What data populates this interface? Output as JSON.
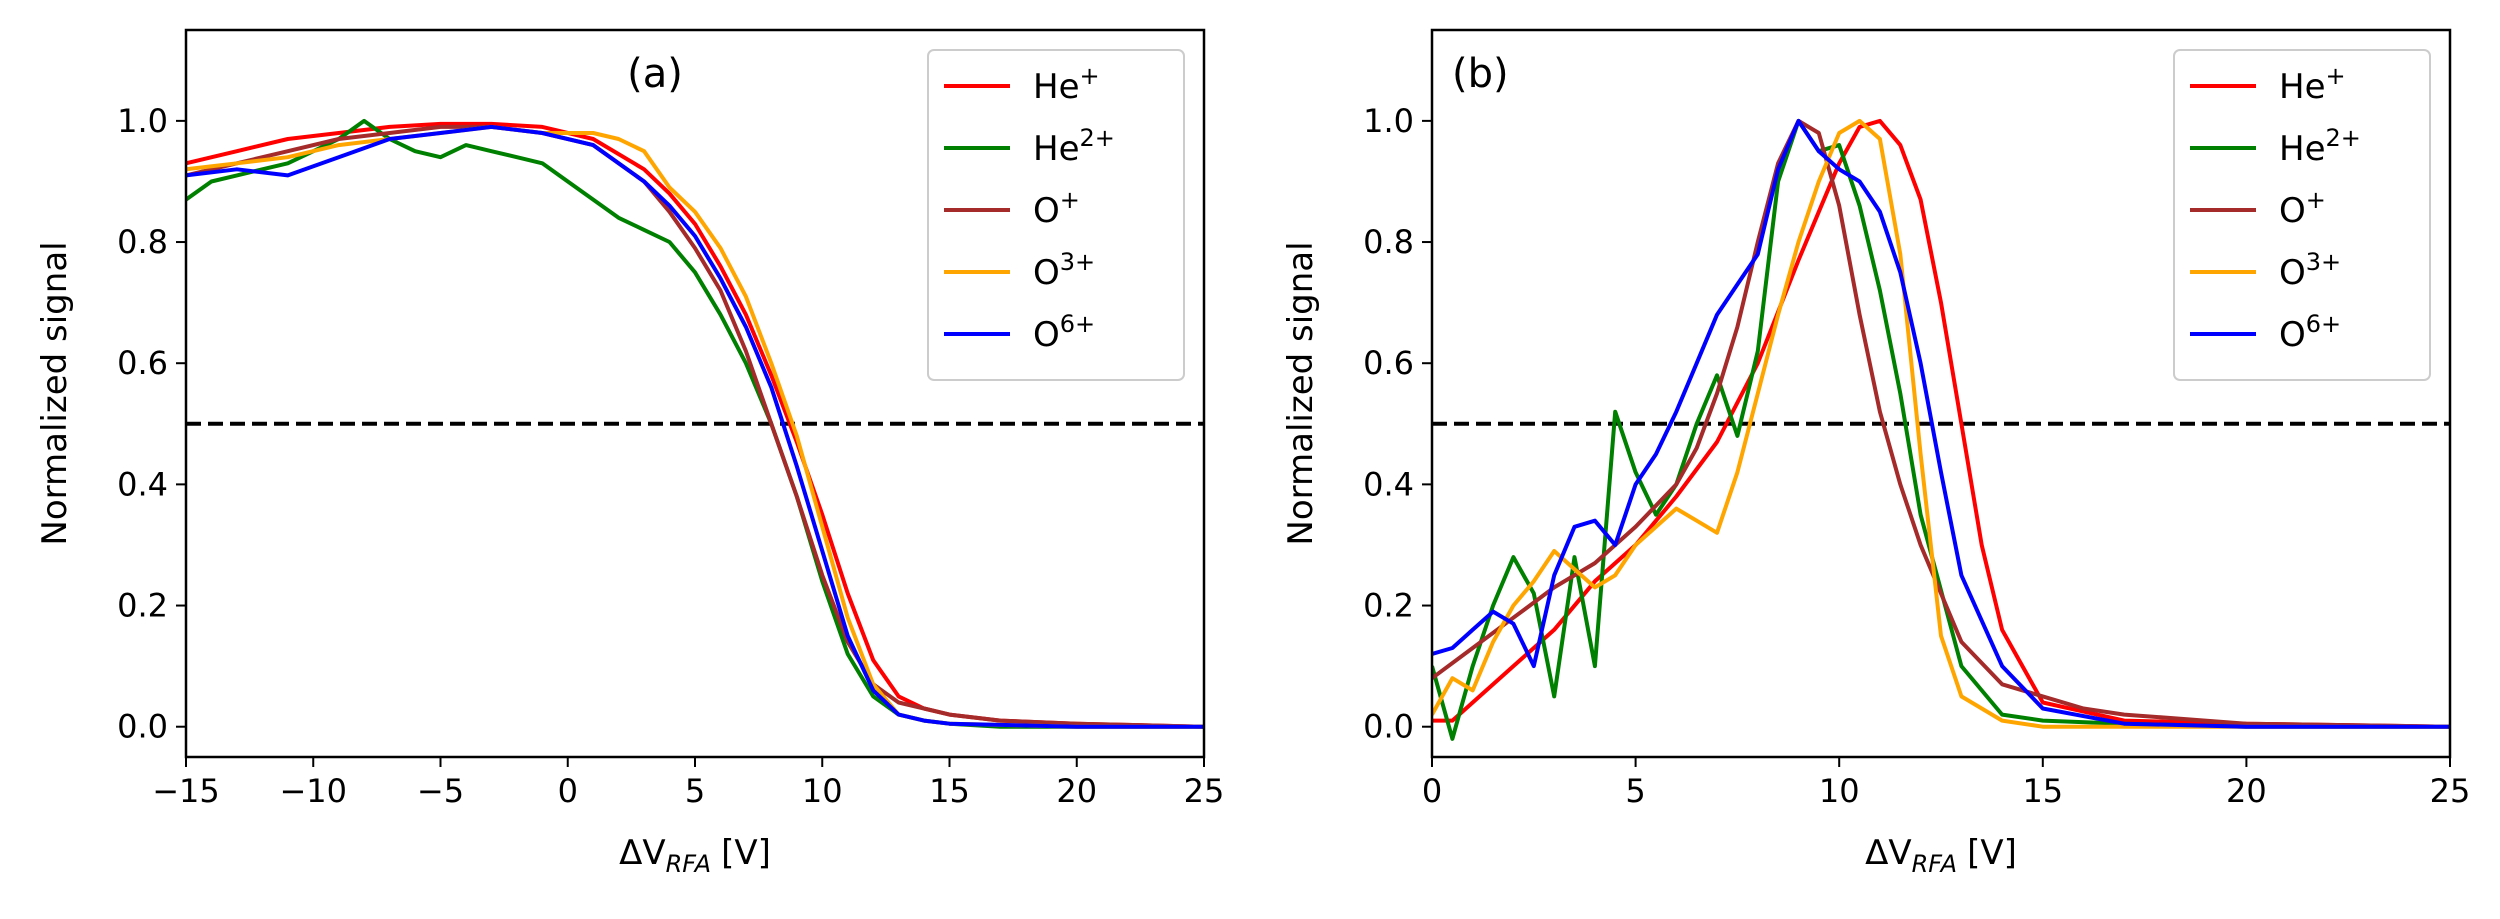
{
  "chart_data": [
    {
      "type": "line",
      "panel_label": "(a)",
      "xlabel_prefix": "ΔV",
      "xlabel_sub": "RFA",
      "xlabel_unit": "[V]",
      "ylabel": "Normalized signal",
      "xlim": [
        -15,
        25
      ],
      "ylim": [
        -0.05,
        1.15
      ],
      "xticks": [
        "−15",
        "−10",
        "−5",
        "0",
        "5",
        "10",
        "15",
        "20",
        "25"
      ],
      "xtick_values": [
        -15,
        -10,
        -5,
        0,
        5,
        10,
        15,
        20,
        25
      ],
      "yticks": [
        "0.0",
        "0.2",
        "0.4",
        "0.6",
        "0.8",
        "1.0"
      ],
      "ytick_values": [
        0.0,
        0.2,
        0.4,
        0.6,
        0.8,
        1.0
      ],
      "hline": 0.5,
      "legend_position": "upper right",
      "series": [
        {
          "name": "He",
          "sup": "+",
          "color": "#ff0000",
          "x": [
            -15,
            -13,
            -11,
            -9,
            -7,
            -5,
            -3,
            -1,
            1,
            3,
            4,
            5,
            6,
            7,
            8,
            9,
            10,
            11,
            12,
            13,
            14,
            15,
            17,
            20,
            25
          ],
          "y": [
            0.93,
            0.95,
            0.97,
            0.98,
            0.99,
            0.995,
            0.995,
            0.99,
            0.97,
            0.92,
            0.88,
            0.83,
            0.76,
            0.68,
            0.58,
            0.47,
            0.35,
            0.22,
            0.11,
            0.05,
            0.03,
            0.02,
            0.01,
            0.005,
            0.0
          ]
        },
        {
          "name": "He",
          "sup": "2+",
          "color": "#008000",
          "x": [
            -15,
            -14,
            -13,
            -12,
            -11,
            -10,
            -9,
            -8,
            -7,
            -6,
            -5,
            -4,
            -3,
            -2,
            -1,
            0,
            1,
            2,
            3,
            4,
            5,
            6,
            7,
            8,
            9,
            10,
            11,
            12,
            13,
            14,
            15,
            17,
            20,
            25
          ],
          "y": [
            0.87,
            0.9,
            0.91,
            0.92,
            0.93,
            0.95,
            0.97,
            1.0,
            0.97,
            0.95,
            0.94,
            0.96,
            0.95,
            0.94,
            0.93,
            0.9,
            0.87,
            0.84,
            0.82,
            0.8,
            0.75,
            0.68,
            0.6,
            0.5,
            0.38,
            0.24,
            0.12,
            0.05,
            0.02,
            0.01,
            0.005,
            0.0,
            0.0,
            0.0
          ]
        },
        {
          "name": "O",
          "sup": "+",
          "color": "#a52a2a",
          "x": [
            -15,
            -13,
            -11,
            -9,
            -7,
            -5,
            -3,
            -1,
            1,
            3,
            4,
            5,
            6,
            7,
            8,
            9,
            10,
            11,
            12,
            13,
            14,
            15,
            17,
            20,
            25
          ],
          "y": [
            0.91,
            0.93,
            0.95,
            0.97,
            0.98,
            0.99,
            0.99,
            0.98,
            0.96,
            0.9,
            0.85,
            0.79,
            0.72,
            0.62,
            0.5,
            0.38,
            0.25,
            0.14,
            0.07,
            0.04,
            0.03,
            0.02,
            0.01,
            0.005,
            0.0
          ]
        },
        {
          "name": "O",
          "sup": "3+",
          "color": "#ffa500",
          "x": [
            -15,
            -13,
            -11,
            -9,
            -7,
            -5,
            -3,
            -1,
            1,
            2,
            3,
            4,
            5,
            6,
            7,
            8,
            9,
            10,
            11,
            12,
            13,
            14,
            15,
            20,
            25
          ],
          "y": [
            0.92,
            0.93,
            0.94,
            0.96,
            0.97,
            0.98,
            0.99,
            0.98,
            0.98,
            0.97,
            0.95,
            0.89,
            0.85,
            0.79,
            0.71,
            0.6,
            0.48,
            0.33,
            0.18,
            0.07,
            0.02,
            0.01,
            0.005,
            0.0,
            0.0
          ]
        },
        {
          "name": "O",
          "sup": "6+",
          "color": "#0000ff",
          "x": [
            -15,
            -13,
            -11,
            -9,
            -7,
            -5,
            -3,
            -1,
            1,
            2,
            3,
            4,
            5,
            6,
            7,
            8,
            9,
            10,
            11,
            12,
            13,
            14,
            15,
            20,
            25
          ],
          "y": [
            0.91,
            0.92,
            0.91,
            0.94,
            0.97,
            0.98,
            0.99,
            0.98,
            0.96,
            0.93,
            0.9,
            0.86,
            0.81,
            0.74,
            0.66,
            0.56,
            0.43,
            0.29,
            0.15,
            0.06,
            0.02,
            0.01,
            0.005,
            0.0,
            0.0
          ]
        }
      ]
    },
    {
      "type": "line",
      "panel_label": "(b)",
      "xlabel_prefix": "ΔV",
      "xlabel_sub": "RFA",
      "xlabel_unit": "[V]",
      "ylabel": "Normalized signal",
      "xlim": [
        0,
        25
      ],
      "ylim": [
        -0.05,
        1.15
      ],
      "xticks": [
        "0",
        "5",
        "10",
        "15",
        "20",
        "25"
      ],
      "xtick_values": [
        0,
        5,
        10,
        15,
        20,
        25
      ],
      "yticks": [
        "0.0",
        "0.2",
        "0.4",
        "0.6",
        "0.8",
        "1.0"
      ],
      "ytick_values": [
        0.0,
        0.2,
        0.4,
        0.6,
        0.8,
        1.0
      ],
      "hline": 0.5,
      "legend_position": "upper right",
      "series": [
        {
          "name": "He",
          "sup": "+",
          "color": "#ff0000",
          "x": [
            0,
            0.5,
            1,
            2,
            3,
            4,
            5,
            6,
            7,
            8,
            9,
            9.5,
            10,
            10.5,
            11,
            11.5,
            12,
            12.5,
            13,
            13.5,
            14,
            15,
            17,
            20,
            25
          ],
          "y": [
            0.01,
            0.01,
            0.04,
            0.1,
            0.16,
            0.24,
            0.3,
            0.38,
            0.47,
            0.6,
            0.77,
            0.85,
            0.93,
            0.99,
            1.0,
            0.96,
            0.87,
            0.7,
            0.5,
            0.3,
            0.16,
            0.04,
            0.01,
            0.005,
            0.0
          ]
        },
        {
          "name": "He",
          "sup": "2+",
          "color": "#008000",
          "x": [
            0,
            0.5,
            1,
            1.5,
            2,
            2.5,
            3,
            3.5,
            4,
            4.5,
            5,
            5.5,
            6,
            6.5,
            7,
            7.5,
            8,
            8.5,
            9,
            9.5,
            10,
            10.5,
            11,
            11.5,
            12,
            13,
            14,
            15,
            17,
            20,
            25
          ],
          "y": [
            0.1,
            -0.02,
            0.1,
            0.2,
            0.28,
            0.22,
            0.05,
            0.28,
            0.1,
            0.52,
            0.42,
            0.35,
            0.4,
            0.5,
            0.58,
            0.48,
            0.62,
            0.9,
            1.0,
            0.95,
            0.96,
            0.86,
            0.72,
            0.55,
            0.35,
            0.1,
            0.02,
            0.01,
            0.005,
            0.0,
            0.0
          ]
        },
        {
          "name": "O",
          "sup": "+",
          "color": "#a52a2a",
          "x": [
            0,
            1,
            2,
            3,
            4,
            5,
            6,
            6.5,
            7,
            7.5,
            8,
            8.5,
            9,
            9.5,
            10,
            10.5,
            11,
            11.5,
            12,
            13,
            14,
            15,
            16,
            17,
            20,
            25
          ],
          "y": [
            0.08,
            0.13,
            0.18,
            0.23,
            0.27,
            0.33,
            0.4,
            0.46,
            0.55,
            0.66,
            0.8,
            0.93,
            1.0,
            0.98,
            0.86,
            0.68,
            0.52,
            0.4,
            0.3,
            0.14,
            0.07,
            0.05,
            0.03,
            0.02,
            0.005,
            0.0
          ]
        },
        {
          "name": "O",
          "sup": "3+",
          "color": "#ffa500",
          "x": [
            0,
            0.5,
            1,
            1.5,
            2,
            2.5,
            3,
            3.5,
            4,
            4.5,
            5,
            5.5,
            6,
            6.5,
            7,
            7.5,
            8,
            8.5,
            9,
            9.5,
            10,
            10.5,
            11,
            11.5,
            12,
            12.5,
            13,
            14,
            15,
            17,
            20,
            25
          ],
          "y": [
            0.02,
            0.08,
            0.06,
            0.14,
            0.2,
            0.24,
            0.29,
            0.26,
            0.23,
            0.25,
            0.3,
            0.33,
            0.36,
            0.34,
            0.32,
            0.42,
            0.55,
            0.68,
            0.8,
            0.9,
            0.98,
            1.0,
            0.97,
            0.78,
            0.45,
            0.15,
            0.05,
            0.01,
            0.0,
            0.0,
            0.0,
            0.0
          ]
        },
        {
          "name": "O",
          "sup": "6+",
          "color": "#0000ff",
          "x": [
            0,
            0.5,
            1,
            1.5,
            2,
            2.5,
            3,
            3.5,
            4,
            4.5,
            5,
            5.5,
            6,
            6.5,
            7,
            7.5,
            8,
            8.5,
            9,
            9.5,
            10,
            10.5,
            11,
            11.5,
            12,
            12.5,
            13,
            14,
            15,
            17,
            20,
            25
          ],
          "y": [
            0.12,
            0.13,
            0.16,
            0.19,
            0.17,
            0.1,
            0.25,
            0.33,
            0.34,
            0.3,
            0.4,
            0.45,
            0.52,
            0.6,
            0.68,
            0.73,
            0.78,
            0.92,
            1.0,
            0.95,
            0.92,
            0.9,
            0.85,
            0.75,
            0.6,
            0.42,
            0.25,
            0.1,
            0.03,
            0.005,
            0.0,
            0.0
          ]
        }
      ]
    }
  ]
}
